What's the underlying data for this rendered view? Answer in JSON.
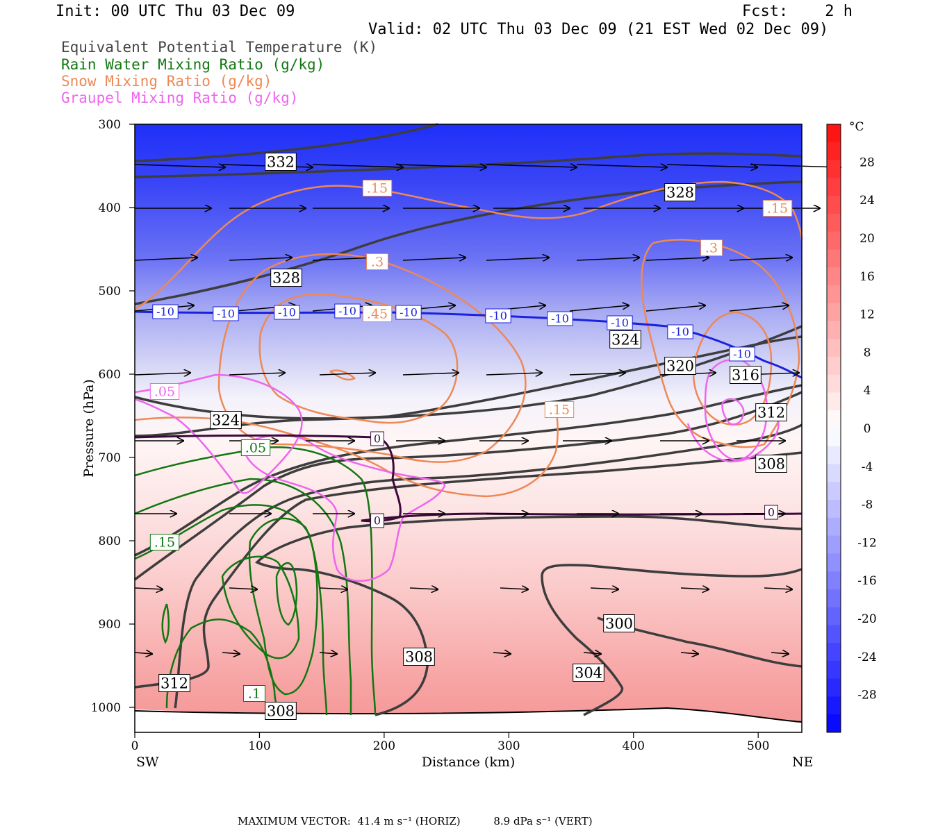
{
  "header": {
    "init": "Init: 00 UTC Thu 03 Dec 09",
    "fcst": "Fcst:    2 h",
    "valid": "Valid: 02 UTC Thu 03 Dec 09 (21 EST Wed 02 Dec 09)"
  },
  "legend": [
    {
      "text": "Equivalent Potential Temperature (K)",
      "color": "#444444"
    },
    {
      "text": "Rain Water Mixing Ratio (g/kg)",
      "color": "#117711"
    },
    {
      "text": "Snow Mixing Ratio (g/kg)",
      "color": "#ee8855"
    },
    {
      "text": "Graupel Mixing Ratio (g/kg)",
      "color": "#ee66ee"
    }
  ],
  "footer": {
    "max_vector": "MAXIMUM VECTOR:  41.4 m s⁻¹ (HORIZ)          8.9 dPa s⁻¹ (VERT)"
  },
  "chart_data": {
    "type": "heatmap",
    "title": "",
    "xlabel": "Distance (km)",
    "ylabel": "Pressure (hPa)",
    "xlim": [
      0,
      535
    ],
    "ylim": [
      1030,
      300
    ],
    "x_ticks": [
      0,
      100,
      200,
      300,
      400,
      500
    ],
    "y_ticks": [
      300,
      400,
      500,
      600,
      700,
      800,
      900,
      1000
    ],
    "x_ends": {
      "left": "SW",
      "right": "NE"
    },
    "colorbar": {
      "unit": "°C",
      "ticks": [
        28,
        24,
        20,
        16,
        12,
        8,
        4,
        0,
        -4,
        -8,
        -12,
        -16,
        -20,
        -24,
        -28
      ]
    },
    "theta_e_labels": [
      "332",
      "328",
      "328",
      "324",
      "324",
      "320",
      "316",
      "312",
      "308",
      "312",
      "308",
      "308",
      "304",
      "300"
    ],
    "temperature_labels": [
      "-10",
      "-10",
      "-10",
      "-10",
      "-10",
      "-10",
      "-10",
      "-10",
      "-10",
      "-10",
      "0",
      "0",
      "0"
    ],
    "snow_labels": [
      ".15",
      ".3",
      ".45",
      ".15",
      ".15",
      ".3"
    ],
    "rain_labels": [
      ".05",
      ".15",
      ".1"
    ],
    "graupel_labels": [
      ".05"
    ]
  }
}
